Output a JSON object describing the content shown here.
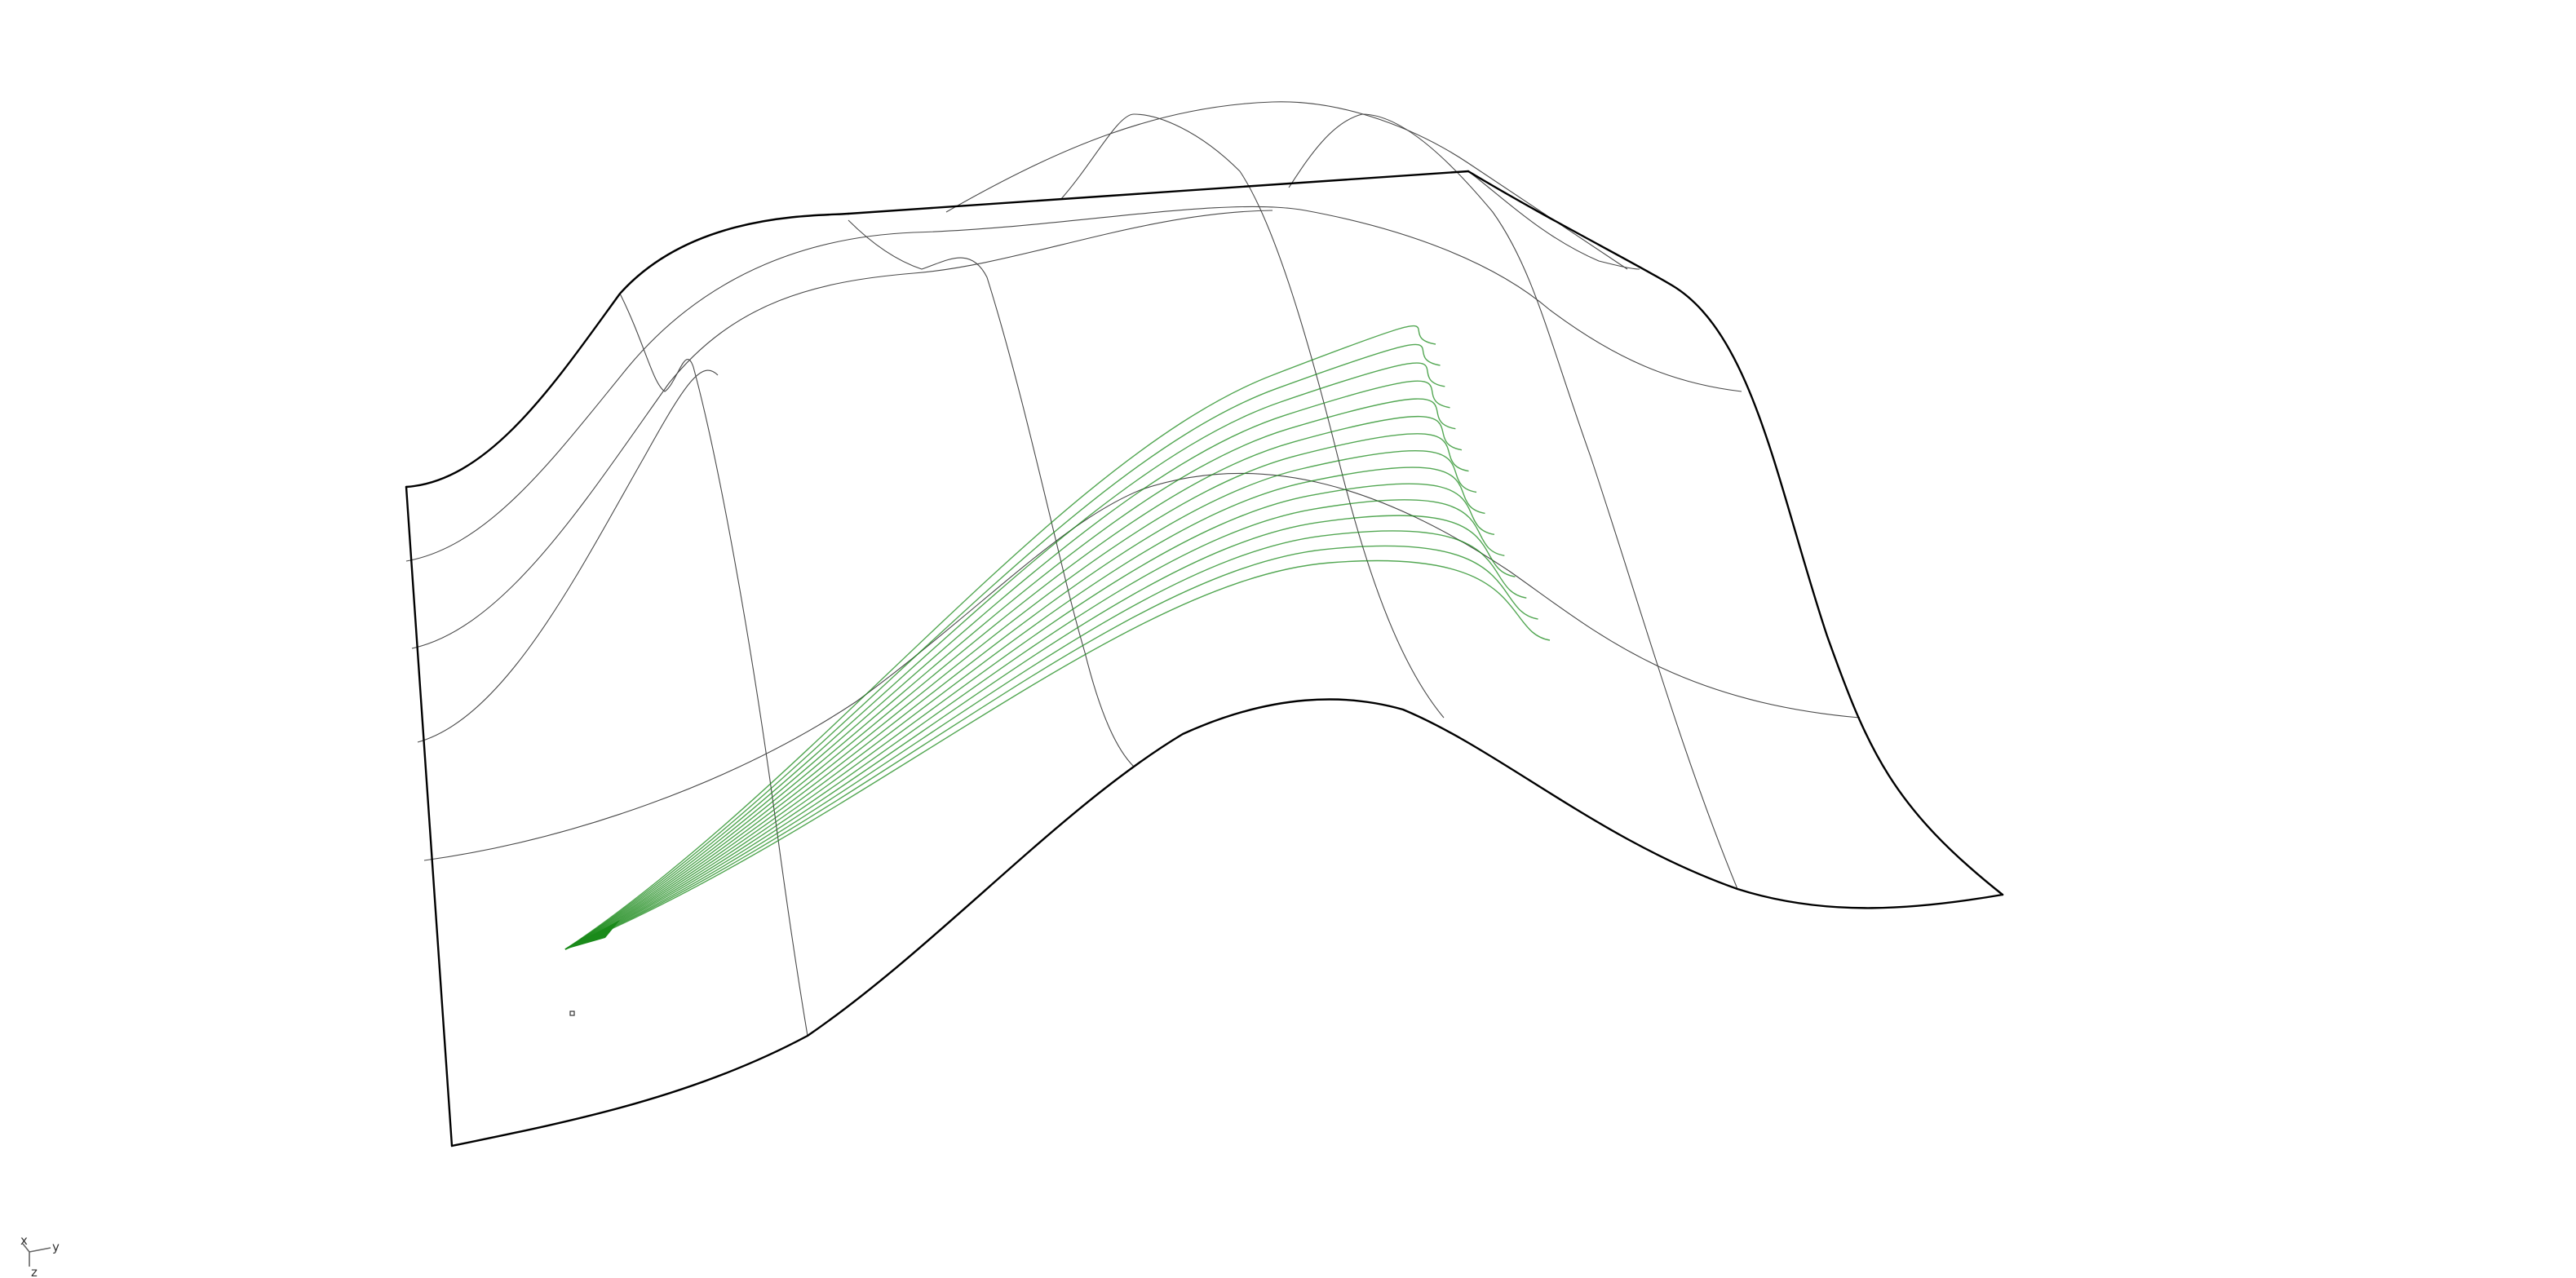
{
  "viewport": {
    "colors": {
      "background": "#ffffff",
      "surface_edge": "#000000",
      "isocurve": "#4a4a4a",
      "flow_curves": "#1a8a1a"
    },
    "axis_gizmo": {
      "labels": [
        "x",
        "y",
        "z"
      ]
    }
  }
}
